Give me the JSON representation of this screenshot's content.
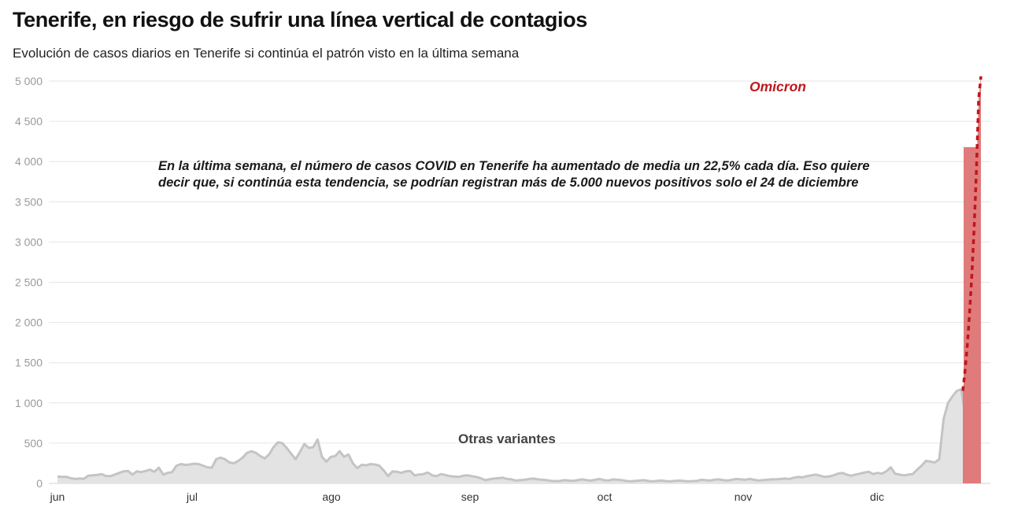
{
  "title": "Tenerife, en riesgo de sufrir una línea vertical de contagios",
  "subtitle": "Evolución de casos diarios en Tenerife si continúa el patrón visto en la última semana",
  "chart_data": {
    "type": "area",
    "title": "Tenerife, en riesgo de sufrir una línea vertical de contagios",
    "subtitle": "Evolución de casos diarios en Tenerife si continúa el patrón visto en la última semana",
    "xlabel": "",
    "ylabel": "",
    "ylim": [
      0,
      5000
    ],
    "y_ticks": [
      0,
      500,
      1000,
      1500,
      2000,
      2500,
      3000,
      3500,
      4000,
      4500,
      5000
    ],
    "y_tick_labels": [
      "0",
      "500",
      "1 000",
      "1 500",
      "2 000",
      "2 500",
      "3 000",
      "3 500",
      "4 000",
      "4 500",
      "5 000"
    ],
    "x_tick_labels": [
      "jun",
      "jul",
      "ago",
      "sep",
      "oct",
      "nov",
      "dic"
    ],
    "grid": true,
    "colors": {
      "observed_line": "#c4c4c4",
      "observed_fill": "#e3e3e3",
      "projection_fill": "#e07b7b",
      "projection_line": "#c0161c",
      "grid": "#e6e6e6"
    },
    "annotations": {
      "main_line1": "En la última semana, el número de casos COVID en Tenerife ha aumentado de media un 22,5% cada día. Eso quiere",
      "main_line2": "decir que, si continúa esta tendencia, se podrían registran más de 5.000 nuevos positivos solo el 24 de diciembre",
      "omicron": "Omicron",
      "otras": "Otras variantes"
    },
    "series": [
      {
        "name": "Otras variantes",
        "values": [
          85,
          80,
          82,
          65,
          55,
          60,
          58,
          95,
          100,
          105,
          115,
          92,
          90,
          110,
          130,
          150,
          155,
          110,
          150,
          140,
          155,
          170,
          145,
          195,
          110,
          130,
          140,
          220,
          240,
          230,
          235,
          245,
          240,
          220,
          200,
          195,
          300,
          320,
          300,
          260,
          250,
          280,
          320,
          380,
          400,
          380,
          340,
          310,
          360,
          450,
          510,
          500,
          440,
          370,
          300,
          390,
          490,
          440,
          450,
          545,
          330,
          270,
          330,
          340,
          400,
          330,
          360,
          250,
          190,
          230,
          225,
          240,
          235,
          220,
          160,
          90,
          150,
          145,
          130,
          150,
          155,
          100,
          110,
          115,
          135,
          100,
          90,
          115,
          105,
          90,
          85,
          80,
          95,
          100,
          90,
          80,
          65,
          40,
          50,
          60,
          65,
          70,
          55,
          50,
          35,
          40,
          45,
          55,
          60,
          50,
          45,
          40,
          30,
          28,
          30,
          40,
          35,
          30,
          40,
          50,
          40,
          35,
          45,
          55,
          40,
          35,
          50,
          45,
          40,
          30,
          25,
          30,
          35,
          40,
          30,
          25,
          30,
          35,
          28,
          25,
          30,
          35,
          30,
          25,
          28,
          30,
          45,
          40,
          35,
          45,
          50,
          40,
          35,
          45,
          55,
          50,
          45,
          55,
          45,
          35,
          40,
          45,
          50,
          50,
          55,
          60,
          55,
          70,
          80,
          75,
          90,
          100,
          110,
          95,
          80,
          85,
          100,
          120,
          130,
          110,
          95,
          110,
          120,
          135,
          145,
          115,
          130,
          120,
          150,
          200,
          120,
          110,
          100,
          110,
          115,
          170,
          220,
          280,
          270,
          260,
          300,
          800,
          1000,
          1080,
          1150,
          1170,
          800
        ]
      },
      {
        "name": "Omicron",
        "values": [
          1150,
          1410,
          1730,
          2120,
          2600,
          3180,
          3900,
          4780,
          5060
        ]
      }
    ]
  }
}
